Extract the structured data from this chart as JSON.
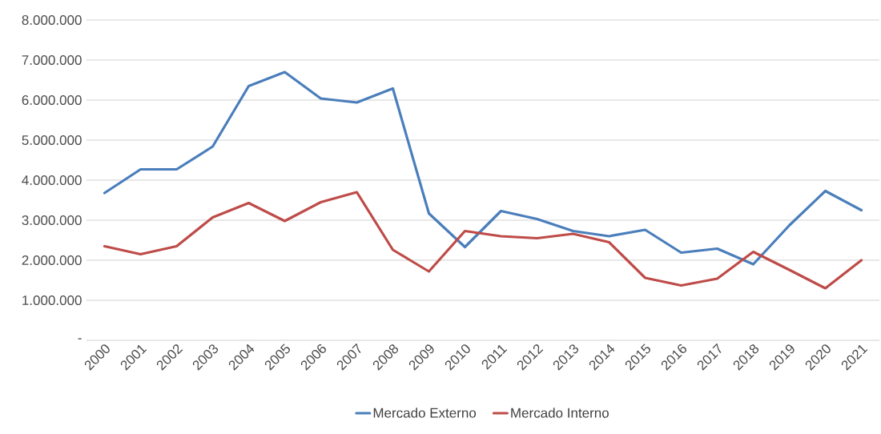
{
  "chart_data": {
    "type": "line",
    "categories": [
      "2000",
      "2001",
      "2002",
      "2003",
      "2004",
      "2005",
      "2006",
      "2007",
      "2008",
      "2009",
      "2010",
      "2011",
      "2012",
      "2013",
      "2014",
      "2015",
      "2016",
      "2017",
      "2018",
      "2019",
      "2020",
      "2021"
    ],
    "series": [
      {
        "name": "Mercado Externo",
        "color": "#4a7ebb",
        "values": [
          3680000,
          4270000,
          4270000,
          4840000,
          6350000,
          6700000,
          6040000,
          5940000,
          6290000,
          3170000,
          2330000,
          3230000,
          3030000,
          2730000,
          2600000,
          2760000,
          2190000,
          2290000,
          1900000,
          2870000,
          3730000,
          3250000
        ]
      },
      {
        "name": "Mercado Interno",
        "color": "#be4b48",
        "values": [
          2350000,
          2150000,
          2350000,
          3070000,
          3430000,
          2980000,
          3450000,
          3700000,
          2260000,
          1720000,
          2730000,
          2600000,
          2550000,
          2660000,
          2450000,
          1560000,
          1370000,
          1540000,
          2210000,
          1760000,
          1300000,
          2000000
        ]
      }
    ],
    "ylim": [
      0,
      8000000
    ],
    "yticks": [
      {
        "value": 0,
        "label": "-"
      },
      {
        "value": 1000000,
        "label": "1.000.000"
      },
      {
        "value": 2000000,
        "label": "2.000.000"
      },
      {
        "value": 3000000,
        "label": "3.000.000"
      },
      {
        "value": 4000000,
        "label": "4.000.000"
      },
      {
        "value": 5000000,
        "label": "5.000.000"
      },
      {
        "value": 6000000,
        "label": "6.000.000"
      },
      {
        "value": 7000000,
        "label": "7.000.000"
      },
      {
        "value": 8000000,
        "label": "8.000.000"
      }
    ],
    "grid": "y",
    "legend": "bottom",
    "marker": "none",
    "line_style": "solid"
  }
}
